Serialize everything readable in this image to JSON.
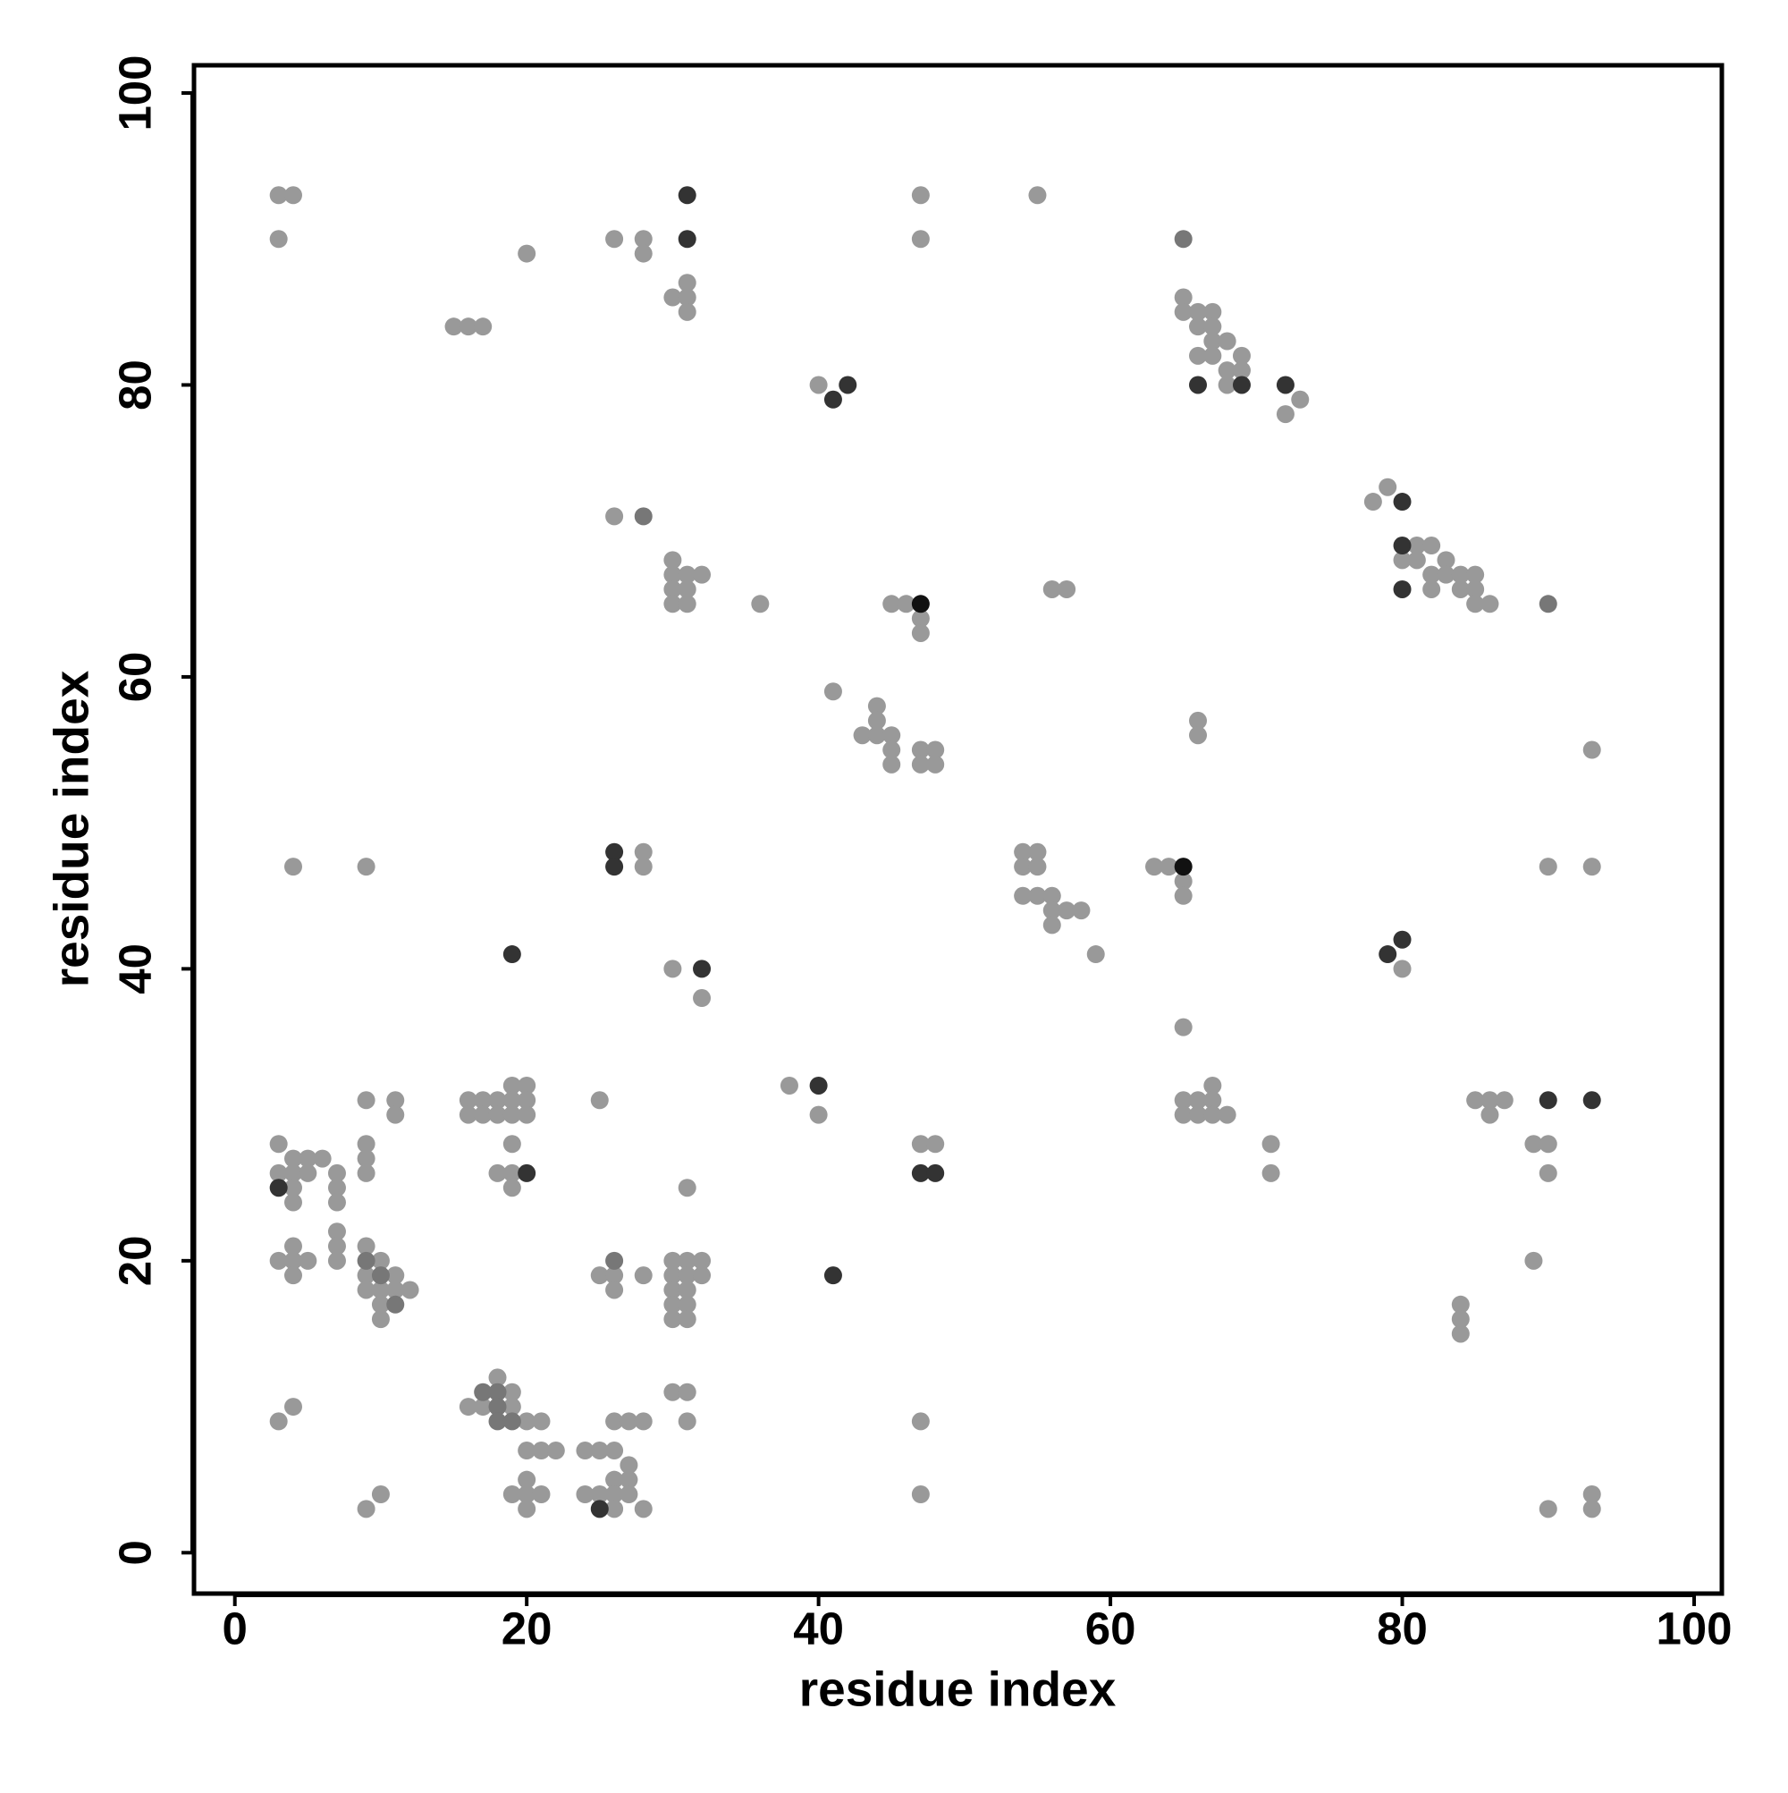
{
  "chart_data": {
    "type": "scatter",
    "x_label": "residue index",
    "y_label": "residue index",
    "xlim": [
      -2.8,
      101.9
    ],
    "ylim": [
      -2.8,
      101.9
    ],
    "xticks": [
      0,
      20,
      40,
      60,
      80,
      100
    ],
    "yticks": [
      0,
      20,
      40,
      60,
      80,
      100
    ],
    "grid": false,
    "series": [
      {
        "color": "#999999",
        "x": [
          3,
          4,
          47,
          55,
          3,
          26,
          28,
          47,
          20,
          28,
          31,
          30,
          31,
          65,
          31,
          65,
          66,
          67,
          15,
          16,
          17,
          66,
          67,
          67,
          68,
          66,
          67,
          69,
          68,
          69,
          40,
          68,
          73,
          72,
          79,
          78,
          26,
          81,
          82,
          30,
          80,
          81,
          83,
          30,
          31,
          32,
          82,
          83,
          84,
          85,
          30,
          31,
          56,
          57,
          82,
          84,
          85,
          30,
          31,
          36,
          45,
          46,
          85,
          86,
          47,
          47,
          41,
          44,
          44,
          66,
          43,
          44,
          45,
          66,
          45,
          47,
          48,
          93,
          45,
          47,
          48,
          28,
          54,
          55,
          4,
          9,
          28,
          54,
          55,
          63,
          64,
          90,
          93,
          65,
          54,
          55,
          56,
          65,
          56,
          57,
          58,
          56,
          59,
          30,
          80,
          32,
          65,
          19,
          20,
          38,
          67,
          9,
          11,
          16,
          17,
          18,
          19,
          20,
          25,
          65,
          66,
          67,
          85,
          86,
          87,
          11,
          16,
          17,
          18,
          19,
          20,
          40,
          65,
          66,
          67,
          68,
          86,
          3,
          9,
          19,
          47,
          48,
          71,
          89,
          90,
          4,
          5,
          6,
          9,
          3,
          4,
          5,
          7,
          9,
          18,
          19,
          71,
          90,
          4,
          7,
          19,
          31,
          4,
          7,
          7,
          4,
          7,
          9,
          3,
          4,
          5,
          7,
          10,
          30,
          31,
          32,
          89,
          4,
          9,
          11,
          25,
          26,
          28,
          30,
          31,
          32,
          9,
          10,
          11,
          12,
          26,
          30,
          31,
          10,
          30,
          31,
          84,
          10,
          30,
          31,
          84,
          84,
          18,
          19,
          30,
          31,
          4,
          16,
          17,
          19,
          3,
          20,
          21,
          26,
          27,
          28,
          31,
          47,
          20,
          21,
          22,
          24,
          25,
          26,
          27,
          20,
          26,
          27,
          10,
          19,
          20,
          21,
          24,
          25,
          26,
          27,
          47,
          93,
          9,
          20,
          26,
          28,
          90,
          93
        ],
        "y": [
          93,
          93,
          93,
          93,
          90,
          90,
          90,
          90,
          89,
          89,
          87,
          86,
          86,
          86,
          85,
          85,
          85,
          85,
          84,
          84,
          84,
          84,
          84,
          83,
          83,
          82,
          82,
          82,
          81,
          81,
          80,
          80,
          79,
          78,
          73,
          72,
          71,
          69,
          69,
          68,
          68,
          68,
          68,
          67,
          67,
          67,
          67,
          67,
          67,
          67,
          66,
          66,
          66,
          66,
          66,
          66,
          66,
          65,
          65,
          65,
          65,
          65,
          65,
          65,
          64,
          63,
          59,
          58,
          57,
          57,
          56,
          56,
          56,
          56,
          55,
          55,
          55,
          55,
          54,
          54,
          54,
          48,
          48,
          48,
          47,
          47,
          47,
          47,
          47,
          47,
          47,
          47,
          47,
          46,
          45,
          45,
          45,
          45,
          44,
          44,
          44,
          43,
          41,
          40,
          40,
          38,
          36,
          32,
          32,
          32,
          32,
          31,
          31,
          31,
          31,
          31,
          31,
          31,
          31,
          31,
          31,
          31,
          31,
          31,
          31,
          30,
          30,
          30,
          30,
          30,
          30,
          30,
          30,
          30,
          30,
          30,
          30,
          28,
          28,
          28,
          28,
          28,
          28,
          28,
          28,
          27,
          27,
          27,
          27,
          26,
          26,
          26,
          26,
          26,
          26,
          26,
          26,
          26,
          25,
          25,
          25,
          25,
          24,
          24,
          22,
          21,
          21,
          21,
          20,
          20,
          20,
          20,
          20,
          20,
          20,
          20,
          20,
          19,
          19,
          19,
          19,
          19,
          19,
          19,
          19,
          19,
          18,
          18,
          18,
          18,
          18,
          18,
          18,
          17,
          17,
          17,
          17,
          16,
          16,
          16,
          16,
          15,
          12,
          11,
          11,
          11,
          10,
          10,
          10,
          10,
          9,
          9,
          9,
          9,
          9,
          9,
          9,
          9,
          7,
          7,
          7,
          7,
          7,
          7,
          6,
          5,
          5,
          5,
          4,
          4,
          4,
          4,
          4,
          4,
          4,
          4,
          4,
          4,
          3,
          3,
          3,
          3,
          3,
          3
        ]
      },
      {
        "color": "#777777",
        "x": [
          28,
          65,
          90,
          26,
          9,
          10,
          11,
          17,
          18,
          18,
          18,
          19
        ],
        "y": [
          71,
          90,
          65,
          20,
          20,
          19,
          17,
          11,
          11,
          10,
          9,
          9
        ]
      },
      {
        "color": "#333333",
        "x": [
          31,
          31,
          42,
          66,
          69,
          72,
          41,
          80,
          80,
          80,
          26,
          26,
          80,
          19,
          79,
          32,
          40,
          90,
          93,
          20,
          47,
          48,
          3,
          41,
          25
        ],
        "y": [
          93,
          90,
          80,
          80,
          80,
          80,
          79,
          72,
          69,
          66,
          48,
          47,
          42,
          41,
          41,
          40,
          32,
          31,
          31,
          26,
          26,
          26,
          25,
          19,
          3
        ]
      },
      {
        "color": "#111111",
        "x": [
          47,
          65
        ],
        "y": [
          65,
          47
        ]
      }
    ]
  }
}
